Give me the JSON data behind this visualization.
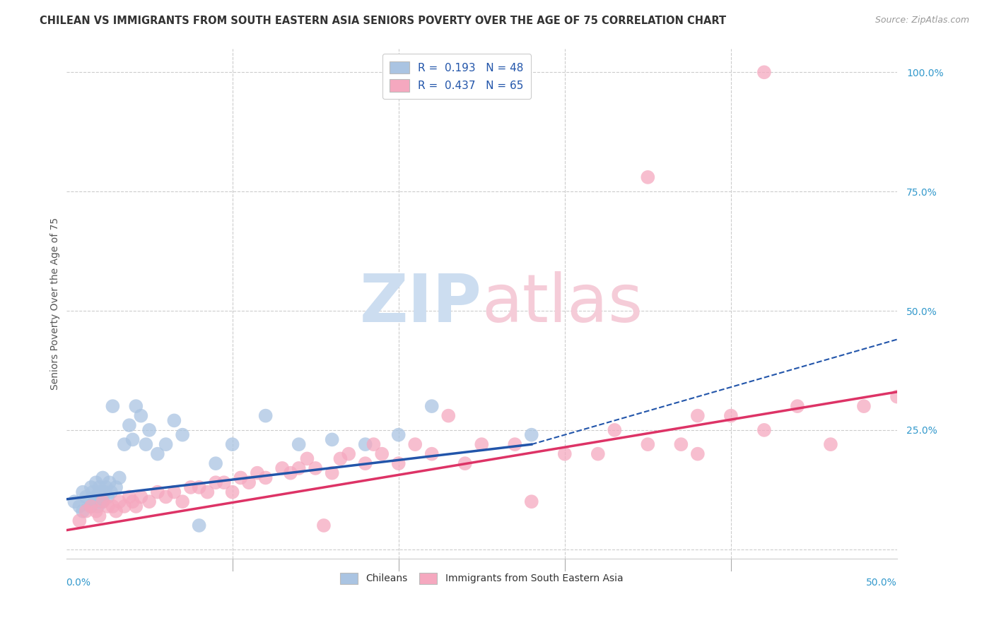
{
  "title": "CHILEAN VS IMMIGRANTS FROM SOUTH EASTERN ASIA SENIORS POVERTY OVER THE AGE OF 75 CORRELATION CHART",
  "source": "Source: ZipAtlas.com",
  "ylabel": "Seniors Poverty Over the Age of 75",
  "xlim": [
    0.0,
    0.5
  ],
  "ylim": [
    -0.02,
    1.05
  ],
  "y_ticks": [
    0.0,
    0.25,
    0.5,
    0.75,
    1.0
  ],
  "y_tick_labels": [
    "",
    "25.0%",
    "50.0%",
    "75.0%",
    "100.0%"
  ],
  "legend_blue_label": "R =  0.193   N = 48",
  "legend_pink_label": "R =  0.437   N = 65",
  "blue_color": "#aac4e2",
  "pink_color": "#f5a8bf",
  "blue_line_color": "#2255aa",
  "pink_line_color": "#dd3366",
  "watermark_zip_color": "#ccddf0",
  "watermark_atlas_color": "#f5ccd8",
  "bg_color": "#ffffff",
  "grid_color": "#cccccc",
  "blue_scatter_x": [
    0.005,
    0.008,
    0.01,
    0.01,
    0.012,
    0.013,
    0.015,
    0.015,
    0.016,
    0.017,
    0.018,
    0.018,
    0.019,
    0.02,
    0.02,
    0.02,
    0.021,
    0.022,
    0.022,
    0.023,
    0.024,
    0.025,
    0.026,
    0.027,
    0.028,
    0.03,
    0.032,
    0.035,
    0.038,
    0.04,
    0.042,
    0.045,
    0.048,
    0.05,
    0.055,
    0.06,
    0.065,
    0.07,
    0.08,
    0.09,
    0.1,
    0.12,
    0.14,
    0.16,
    0.18,
    0.2,
    0.22,
    0.28
  ],
  "blue_scatter_y": [
    0.1,
    0.09,
    0.12,
    0.08,
    0.11,
    0.1,
    0.13,
    0.09,
    0.12,
    0.1,
    0.11,
    0.14,
    0.09,
    0.12,
    0.1,
    0.13,
    0.11,
    0.1,
    0.15,
    0.12,
    0.13,
    0.11,
    0.14,
    0.12,
    0.3,
    0.13,
    0.15,
    0.22,
    0.26,
    0.23,
    0.3,
    0.28,
    0.22,
    0.25,
    0.2,
    0.22,
    0.27,
    0.24,
    0.05,
    0.18,
    0.22,
    0.28,
    0.22,
    0.23,
    0.22,
    0.24,
    0.3,
    0.24
  ],
  "pink_scatter_x": [
    0.008,
    0.012,
    0.015,
    0.018,
    0.02,
    0.022,
    0.025,
    0.028,
    0.03,
    0.032,
    0.035,
    0.038,
    0.04,
    0.042,
    0.045,
    0.05,
    0.055,
    0.06,
    0.065,
    0.07,
    0.075,
    0.08,
    0.085,
    0.09,
    0.095,
    0.1,
    0.105,
    0.11,
    0.115,
    0.12,
    0.13,
    0.135,
    0.14,
    0.145,
    0.15,
    0.155,
    0.16,
    0.165,
    0.17,
    0.18,
    0.185,
    0.19,
    0.2,
    0.21,
    0.22,
    0.23,
    0.24,
    0.25,
    0.27,
    0.28,
    0.3,
    0.32,
    0.33,
    0.35,
    0.37,
    0.38,
    0.4,
    0.42,
    0.44,
    0.46,
    0.48,
    0.5,
    0.35,
    0.38,
    0.42
  ],
  "pink_scatter_y": [
    0.06,
    0.08,
    0.09,
    0.08,
    0.07,
    0.1,
    0.09,
    0.09,
    0.08,
    0.1,
    0.09,
    0.11,
    0.1,
    0.09,
    0.11,
    0.1,
    0.12,
    0.11,
    0.12,
    0.1,
    0.13,
    0.13,
    0.12,
    0.14,
    0.14,
    0.12,
    0.15,
    0.14,
    0.16,
    0.15,
    0.17,
    0.16,
    0.17,
    0.19,
    0.17,
    0.05,
    0.16,
    0.19,
    0.2,
    0.18,
    0.22,
    0.2,
    0.18,
    0.22,
    0.2,
    0.28,
    0.18,
    0.22,
    0.22,
    0.1,
    0.2,
    0.2,
    0.25,
    0.22,
    0.22,
    0.2,
    0.28,
    0.25,
    0.3,
    0.22,
    0.3,
    0.32,
    0.78,
    0.28,
    1.0
  ],
  "blue_line_x_start": 0.0,
  "blue_line_x_solid_end": 0.28,
  "blue_line_x_dash_end": 0.5,
  "blue_line_y_start": 0.105,
  "blue_line_y_solid_end": 0.22,
  "blue_line_y_dash_end": 0.44,
  "pink_line_x_start": 0.0,
  "pink_line_x_end": 0.5,
  "pink_line_y_start": 0.04,
  "pink_line_y_end": 0.33
}
